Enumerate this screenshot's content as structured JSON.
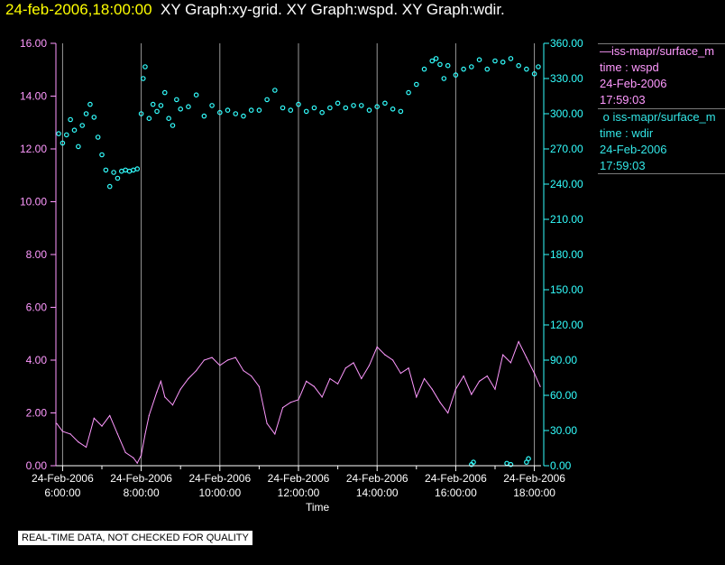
{
  "title": {
    "timestamp": "24-feb-2006,18:00:00",
    "graphs": "XY Graph:xy-grid.  XY Graph:wspd.  XY Graph:wdir."
  },
  "legend": {
    "wspd": {
      "name": "iss-mapr/surface_m",
      "line1": "time : wspd",
      "line2": "24-Feb-2006",
      "line3": "17:59:03"
    },
    "wdir": {
      "name": "iss-mapr/surface_m",
      "line1": "time : wdir",
      "line2": "24-Feb-2006",
      "line3": "17:59:03"
    }
  },
  "footer": "REAL-TIME DATA, NOT CHECKED FOR QUALITY",
  "colors": {
    "wspd": "#ff99ff",
    "wdir": "#33ffff",
    "grid": "#9a9a9a",
    "text": "#ffffff"
  },
  "chart_data": {
    "type": "line",
    "xlabel": "Time",
    "x_range_hours": [
      5.83,
      18.17
    ],
    "x_ticks": [
      {
        "hour": 6,
        "date": "24-Feb-2006",
        "time": "6:00:00"
      },
      {
        "hour": 8,
        "date": "24-Feb-2006",
        "time": "8:00:00"
      },
      {
        "hour": 10,
        "date": "24-Feb-2006",
        "time": "10:00:00"
      },
      {
        "hour": 12,
        "date": "24-Feb-2006",
        "time": "12:00:00"
      },
      {
        "hour": 14,
        "date": "24-Feb-2006",
        "time": "14:00:00"
      },
      {
        "hour": 16,
        "date": "24-Feb-2006",
        "time": "16:00:00"
      },
      {
        "hour": 18,
        "date": "24-Feb-2006",
        "time": "18:00:00"
      }
    ],
    "y_left": {
      "range": [
        0,
        16
      ],
      "ticks": [
        "0.00",
        "2.00",
        "4.00",
        "6.00",
        "8.00",
        "10.00",
        "12.00",
        "14.00",
        "16.00"
      ]
    },
    "y_right": {
      "range": [
        0,
        360
      ],
      "ticks": [
        "0.00",
        "30.00",
        "60.00",
        "90.00",
        "120.00",
        "150.00",
        "180.00",
        "210.00",
        "240.00",
        "270.00",
        "300.00",
        "330.00",
        "360.00"
      ]
    },
    "grid": "vertical",
    "series": [
      {
        "key": "wspd",
        "axis": "left",
        "style": "line",
        "x": [
          5.85,
          6.0,
          6.2,
          6.4,
          6.6,
          6.8,
          7.0,
          7.2,
          7.4,
          7.6,
          7.8,
          7.9,
          8.0,
          8.1,
          8.2,
          8.4,
          8.5,
          8.6,
          8.8,
          9.0,
          9.2,
          9.4,
          9.6,
          9.8,
          10.0,
          10.2,
          10.4,
          10.6,
          10.8,
          11.0,
          11.2,
          11.4,
          11.6,
          11.8,
          12.0,
          12.2,
          12.4,
          12.6,
          12.8,
          13.0,
          13.2,
          13.4,
          13.6,
          13.8,
          14.0,
          14.2,
          14.4,
          14.6,
          14.8,
          15.0,
          15.2,
          15.4,
          15.6,
          15.8,
          16.0,
          16.2,
          16.4,
          16.6,
          16.8,
          17.0,
          17.2,
          17.4,
          17.6,
          17.8,
          18.0,
          18.15
        ],
        "y": [
          1.6,
          1.3,
          1.2,
          0.9,
          0.7,
          1.8,
          1.5,
          1.9,
          1.2,
          0.5,
          0.3,
          0.1,
          0.4,
          1.2,
          1.9,
          2.8,
          3.2,
          2.6,
          2.3,
          2.9,
          3.3,
          3.6,
          4.0,
          4.1,
          3.8,
          4.0,
          4.1,
          3.6,
          3.4,
          3.0,
          1.6,
          1.2,
          2.2,
          2.4,
          2.5,
          3.2,
          3.0,
          2.6,
          3.3,
          3.1,
          3.7,
          3.9,
          3.3,
          3.8,
          4.5,
          4.2,
          4.0,
          3.5,
          3.7,
          2.6,
          3.3,
          2.9,
          2.4,
          2.0,
          2.9,
          3.4,
          2.7,
          3.2,
          3.4,
          2.9,
          4.2,
          3.9,
          4.7,
          4.1,
          3.5,
          3.0
        ]
      },
      {
        "key": "wdir",
        "axis": "right",
        "style": "points",
        "x": [
          5.9,
          6.0,
          6.1,
          6.2,
          6.3,
          6.4,
          6.5,
          6.6,
          6.7,
          6.8,
          6.9,
          7.0,
          7.1,
          7.2,
          7.3,
          7.4,
          7.5,
          7.6,
          7.7,
          7.8,
          7.9,
          8.0,
          8.05,
          8.1,
          8.2,
          8.3,
          8.4,
          8.5,
          8.6,
          8.7,
          8.8,
          8.9,
          9.0,
          9.2,
          9.4,
          9.6,
          9.8,
          10.0,
          10.2,
          10.4,
          10.6,
          10.8,
          11.0,
          11.2,
          11.4,
          11.6,
          11.8,
          12.0,
          12.2,
          12.4,
          12.6,
          12.8,
          13.0,
          13.2,
          13.4,
          13.6,
          13.8,
          14.0,
          14.2,
          14.4,
          14.6,
          14.8,
          15.0,
          15.2,
          15.4,
          15.5,
          15.6,
          15.7,
          15.8,
          16.0,
          16.2,
          16.4,
          16.6,
          16.8,
          17.0,
          17.2,
          17.4,
          17.6,
          17.8,
          18.0,
          18.1
        ],
        "y": [
          283,
          275,
          282,
          295,
          286,
          272,
          290,
          300,
          308,
          297,
          280,
          265,
          252,
          238,
          250,
          245,
          251,
          252,
          251,
          252,
          253,
          300,
          330,
          340,
          296,
          308,
          302,
          307,
          318,
          296,
          290,
          312,
          304,
          306,
          316,
          298,
          307,
          301,
          303,
          300,
          298,
          303,
          303,
          312,
          320,
          305,
          303,
          308,
          302,
          305,
          301,
          305,
          309,
          305,
          307,
          307,
          303,
          306,
          309,
          304,
          302,
          318,
          325,
          338,
          345,
          347,
          342,
          330,
          341,
          333,
          338,
          340,
          346,
          338,
          345,
          344,
          347,
          341,
          338,
          334,
          340
        ]
      },
      {
        "key": "wdir_low",
        "axis": "right",
        "style": "points",
        "x": [
          16.4,
          16.45,
          17.3,
          17.4,
          17.8,
          17.85
        ],
        "y": [
          1,
          3,
          2,
          1,
          3,
          6
        ]
      }
    ]
  }
}
